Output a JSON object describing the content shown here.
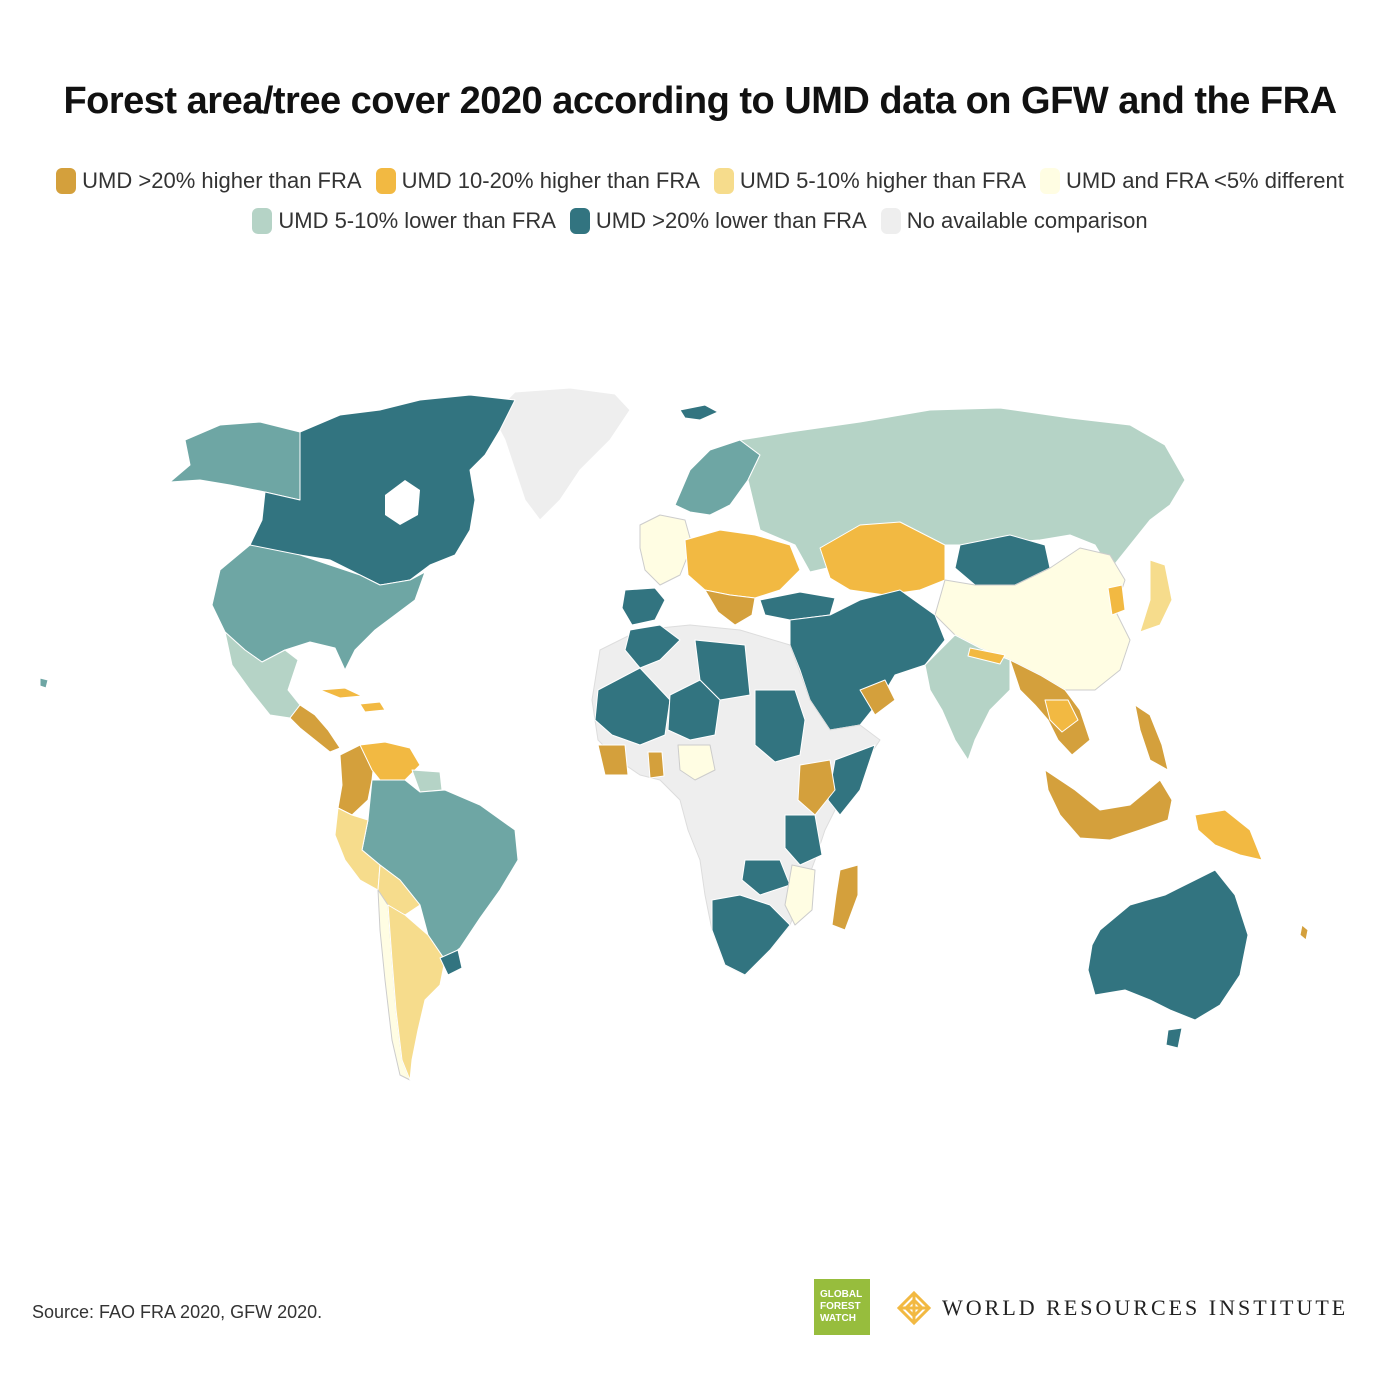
{
  "title": "Forest area/tree cover 2020 according to UMD data on GFW and the FRA",
  "legend": [
    {
      "label": "UMD >20% higher than FRA",
      "color": "#d4a03c"
    },
    {
      "label": "UMD 10-20% higher than FRA",
      "color": "#f2b942"
    },
    {
      "label": "UMD 5-10% higher than FRA",
      "color": "#f6dc8c"
    },
    {
      "label": "UMD and FRA <5% different",
      "color": "#fffde3"
    },
    {
      "label": "UMD 5-10% lower than FRA",
      "color": "#b5d3c6"
    },
    {
      "label": "UMD >20% lower than FRA",
      "color": "#327480"
    },
    {
      "label": "No available comparison",
      "color": "#eeeeee"
    }
  ],
  "extra_color": {
    "lower_10_20": "#6ea6a4"
  },
  "source": "Source: FAO FRA 2020, GFW 2020.",
  "logos": {
    "gfw": [
      "GLOBAL",
      "FOREST",
      "WATCH"
    ],
    "wri": "WORLD RESOURCES INSTITUTE"
  }
}
